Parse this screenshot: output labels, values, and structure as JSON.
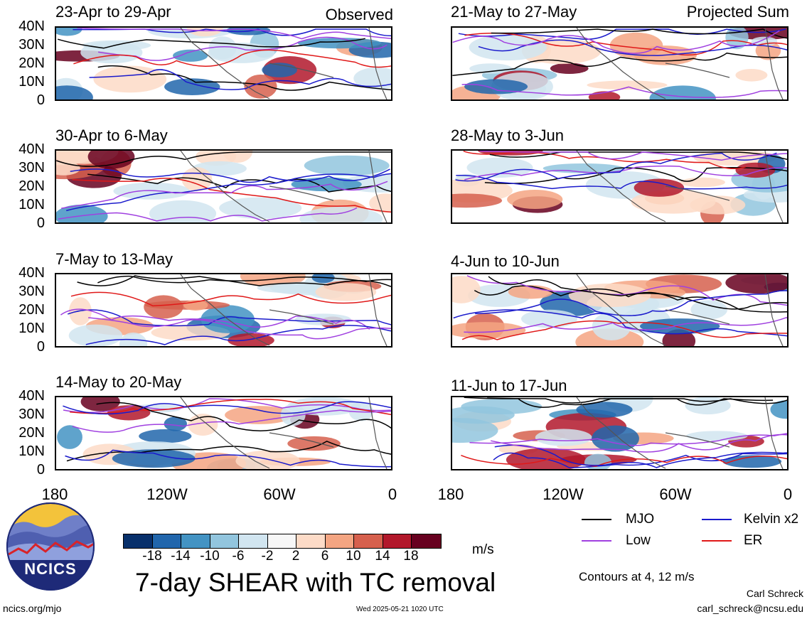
{
  "panels": [
    {
      "title": "23-Apr to 29-Apr",
      "tag": "Observed"
    },
    {
      "title": "30-Apr to 6-May",
      "tag": ""
    },
    {
      "title": "7-May to 13-May",
      "tag": ""
    },
    {
      "title": "14-May to 20-May",
      "tag": ""
    },
    {
      "title": "21-May to 27-May",
      "tag": "Projected Sum"
    },
    {
      "title": "28-May to 3-Jun",
      "tag": ""
    },
    {
      "title": "4-Jun to 10-Jun",
      "tag": ""
    },
    {
      "title": "11-Jun to 17-Jun",
      "tag": ""
    }
  ],
  "lat_labels": [
    "40N",
    "30N",
    "20N",
    "10N",
    "0"
  ],
  "lon_labels": [
    "180",
    "120W",
    "60W",
    "0"
  ],
  "legend": {
    "mjo": "MJO",
    "kelvin": "Kelvin x2",
    "low": "Low",
    "er": "ER",
    "colors": {
      "mjo": "#000000",
      "kelvin": "#1a1acc",
      "low": "#a040e0",
      "er": "#e01818"
    }
  },
  "colorbar": {
    "labels": [
      "-18",
      "-14",
      "-10",
      "-6",
      "-2",
      "2",
      "6",
      "10",
      "14",
      "18"
    ],
    "colors": [
      "#08306b",
      "#2166ac",
      "#4393c3",
      "#92c5de",
      "#d1e5f0",
      "#f7f7f7",
      "#fddbc7",
      "#f4a582",
      "#d6604d",
      "#b2182b",
      "#67001f"
    ],
    "units": "m/s"
  },
  "title": "7-day SHEAR with TC removal",
  "contours_note": "Contours at 4, 12 m/s",
  "author": "Carl Schreck",
  "email": "carl_schreck@ncsu.edu",
  "url": "ncics.org/mjo",
  "timestamp": "Wed 2025-05-21 1020 UTC",
  "logo_text": "NCICS"
}
